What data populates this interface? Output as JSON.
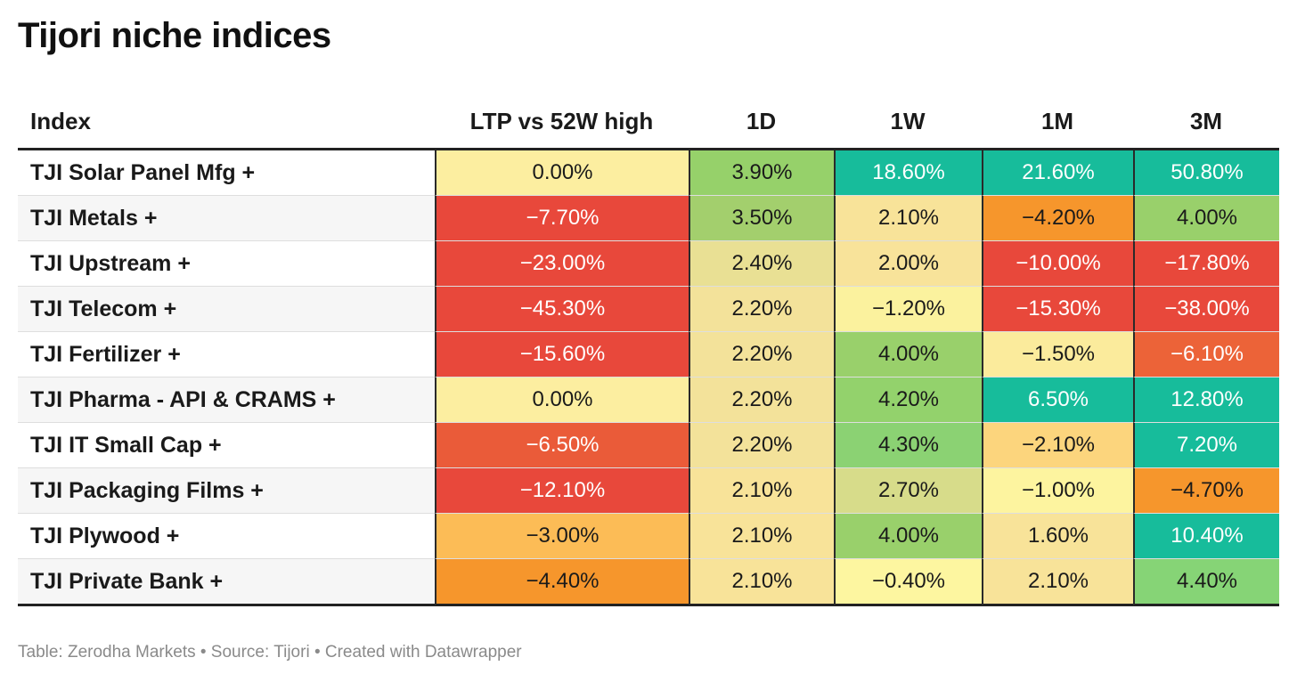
{
  "title": "Tijori niche indices",
  "footer": "Table: Zerodha Markets • Source: Tijori • Created with Datawrapper",
  "chart_data": {
    "type": "table",
    "title": "Tijori niche indices",
    "columns": [
      "Index",
      "LTP vs 52W high",
      "1D",
      "1W",
      "1M",
      "3M"
    ],
    "rows": [
      {
        "index": "TJI Solar Panel Mfg +",
        "values": [
          "0.00%",
          "3.90%",
          "18.60%",
          "21.60%",
          "50.80%"
        ],
        "numbers": [
          0.0,
          3.9,
          18.6,
          21.6,
          50.8
        ],
        "colors": [
          "#fceea0",
          "#96d16a",
          "#17bc9b",
          "#17bc9b",
          "#17bc9b"
        ]
      },
      {
        "index": "TJI Metals +",
        "values": [
          "−7.70%",
          "3.50%",
          "2.10%",
          "−4.20%",
          "4.00%"
        ],
        "numbers": [
          -7.7,
          3.5,
          2.1,
          -4.2,
          4.0
        ],
        "colors": [
          "#e8483b",
          "#a3cf6d",
          "#f8e399",
          "#f6962c",
          "#99d06b"
        ]
      },
      {
        "index": "TJI Upstream +",
        "values": [
          "−23.00%",
          "2.40%",
          "2.00%",
          "−10.00%",
          "−17.80%"
        ],
        "numbers": [
          -23.0,
          2.4,
          2.0,
          -10.0,
          -17.8
        ],
        "colors": [
          "#e8483b",
          "#e9e094",
          "#f8e39a",
          "#e8483b",
          "#e8483b"
        ]
      },
      {
        "index": "TJI Telecom +",
        "values": [
          "−45.30%",
          "2.20%",
          "−1.20%",
          "−15.30%",
          "−38.00%"
        ],
        "numbers": [
          -45.3,
          2.2,
          -1.2,
          -15.3,
          -38.0
        ],
        "colors": [
          "#e8483b",
          "#f3e29a",
          "#fbf29e",
          "#e8483b",
          "#e8483b"
        ]
      },
      {
        "index": "TJI Fertilizer +",
        "values": [
          "−15.60%",
          "2.20%",
          "4.00%",
          "−1.50%",
          "−6.10%"
        ],
        "numbers": [
          -15.6,
          2.2,
          4.0,
          -1.5,
          -6.1
        ],
        "colors": [
          "#e8483b",
          "#f3e29a",
          "#99d06b",
          "#fbeb9c",
          "#ec6338"
        ]
      },
      {
        "index": "TJI Pharma - API & CRAMS +",
        "values": [
          "0.00%",
          "2.20%",
          "4.20%",
          "6.50%",
          "12.80%"
        ],
        "numbers": [
          0.0,
          2.2,
          4.2,
          6.5,
          12.8
        ],
        "colors": [
          "#fceea0",
          "#f3e29a",
          "#93d26c",
          "#17bc9b",
          "#17bc9b"
        ]
      },
      {
        "index": "TJI IT Small Cap +",
        "values": [
          "−6.50%",
          "2.20%",
          "4.30%",
          "−2.10%",
          "7.20%"
        ],
        "numbers": [
          -6.5,
          2.2,
          4.3,
          -2.1,
          7.2
        ],
        "colors": [
          "#ea5b39",
          "#f3e29a",
          "#8bd273",
          "#fcd57d",
          "#17bc9b"
        ]
      },
      {
        "index": "TJI Packaging Films +",
        "values": [
          "−12.10%",
          "2.10%",
          "2.70%",
          "−1.00%",
          "−4.70%"
        ],
        "numbers": [
          -12.1,
          2.1,
          2.7,
          -1.0,
          -4.7
        ],
        "colors": [
          "#e8483b",
          "#f8e399",
          "#d7dc8a",
          "#fdf49f",
          "#f6962c"
        ]
      },
      {
        "index": "TJI Plywood +",
        "values": [
          "−3.00%",
          "2.10%",
          "4.00%",
          "1.60%",
          "10.40%"
        ],
        "numbers": [
          -3.0,
          2.1,
          4.0,
          1.6,
          10.4
        ],
        "colors": [
          "#fcbc56",
          "#f8e399",
          "#99d06b",
          "#f8e399",
          "#17bc9b"
        ]
      },
      {
        "index": "TJI Private Bank +",
        "values": [
          "−4.40%",
          "2.10%",
          "−0.40%",
          "2.10%",
          "4.40%"
        ],
        "numbers": [
          -4.4,
          2.1,
          -0.4,
          2.1,
          4.4
        ],
        "colors": [
          "#f6962c",
          "#f8e399",
          "#fdf6a0",
          "#f8e399",
          "#86d476"
        ]
      }
    ],
    "text_colors": {
      "light": "#ffffff",
      "dark": "#1a1a1a"
    }
  }
}
